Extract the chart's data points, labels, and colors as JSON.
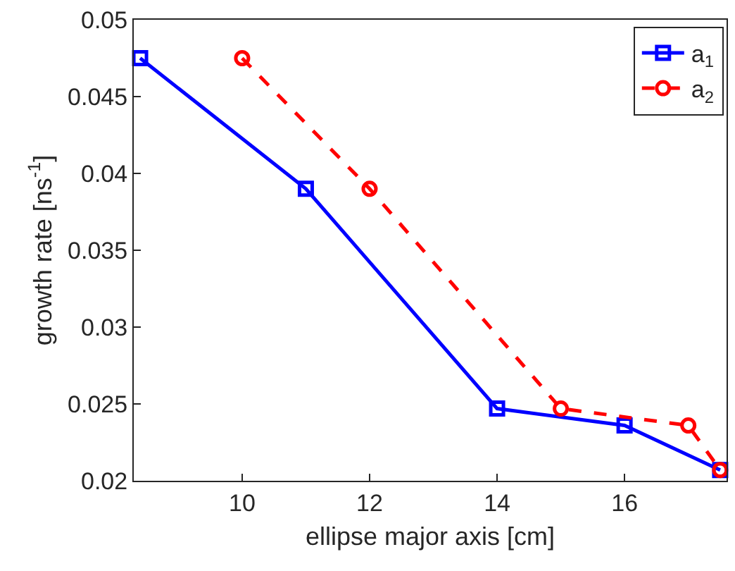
{
  "chart_data": {
    "type": "line",
    "xlabel": "ellipse major axis [cm]",
    "ylabel": "growth rate [ns$^{-1}$]",
    "series": [
      {
        "name": "a$_{1}$",
        "color": "#0000ff",
        "marker": "square",
        "line_style": "solid",
        "x": [
          8.4,
          11,
          14,
          16,
          17.5
        ],
        "values": [
          0.0475,
          0.039,
          0.0247,
          0.0236,
          0.0207
        ]
      },
      {
        "name": "a$_{2}$",
        "color": "#ff0000",
        "marker": "circle",
        "line_style": "dashed",
        "x": [
          10,
          12,
          15,
          17,
          17.5
        ],
        "values": [
          0.0475,
          0.039,
          0.0247,
          0.0236,
          0.0207
        ]
      }
    ],
    "xlim": [
      8.3,
      17.6
    ],
    "xticks": [
      10,
      12,
      14,
      16
    ],
    "ylim": [
      0.02,
      0.05
    ],
    "yticks": [
      0.02,
      0.025,
      0.03,
      0.035,
      0.04,
      0.045,
      0.05
    ],
    "legend": "top right"
  }
}
